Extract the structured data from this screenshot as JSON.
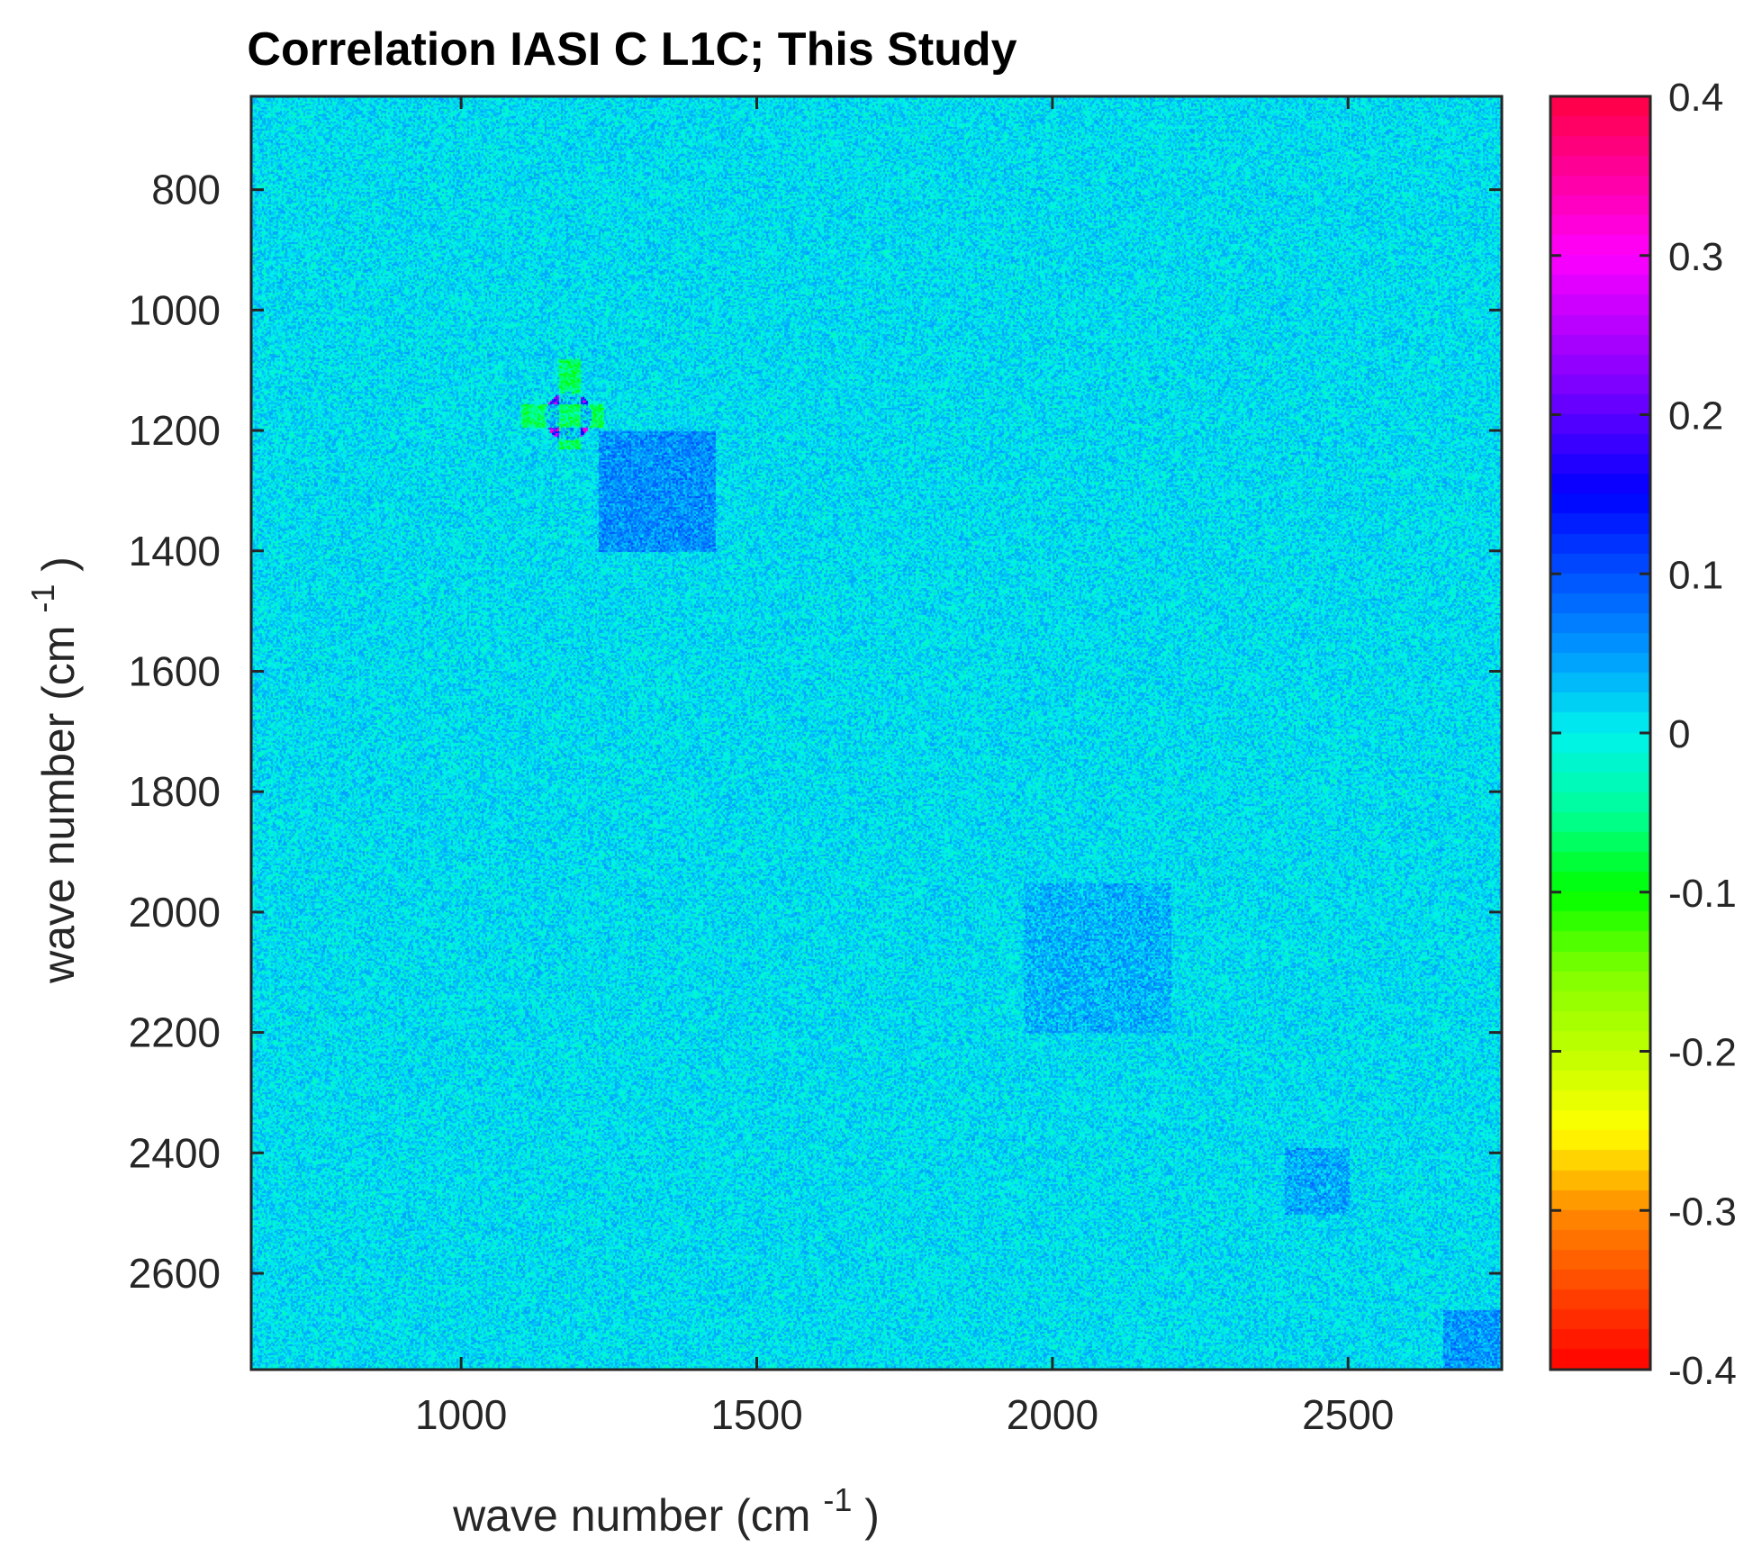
{
  "chart_data": {
    "type": "heatmap",
    "title": "Correlation IASI C L1C; This Study",
    "xlabel": "wave number (cm",
    "ylabel": "wave number (cm",
    "label_superscript": "-1",
    "label_close": ")",
    "xlim": [
      645,
      2760
    ],
    "ylim": [
      645,
      2760
    ],
    "y_reversed": true,
    "xticks": [
      1000,
      1500,
      2000,
      2500
    ],
    "xtick_labels": [
      "1000",
      "1500",
      "2000",
      "2500"
    ],
    "yticks": [
      800,
      1000,
      1200,
      1400,
      1600,
      1800,
      2000,
      2200,
      2400,
      2600
    ],
    "ytick_labels": [
      "800",
      "1000",
      "1200",
      "1400",
      "1600",
      "1800",
      "2000",
      "2200",
      "2400",
      "2600"
    ],
    "colorbar": {
      "range": [
        -0.4,
        0.4
      ],
      "ticks": [
        0.4,
        0.3,
        0.2,
        0.1,
        0,
        -0.1,
        -0.2,
        -0.3,
        -0.4
      ],
      "tick_labels": [
        "0.4",
        "0.3",
        "0.2",
        "0.1",
        "0",
        "-0.1",
        "-0.2",
        "-0.3",
        "-0.4"
      ],
      "colormap": [
        {
          "value": -0.4,
          "color": "#ff0000"
        },
        {
          "value": -0.3,
          "color": "#ff8c00"
        },
        {
          "value": -0.25,
          "color": "#ffff00"
        },
        {
          "value": -0.15,
          "color": "#80ff00"
        },
        {
          "value": -0.1,
          "color": "#00ff00"
        },
        {
          "value": -0.05,
          "color": "#00ff99"
        },
        {
          "value": 0.0,
          "color": "#00f2ee"
        },
        {
          "value": 0.05,
          "color": "#0099ff"
        },
        {
          "value": 0.1,
          "color": "#0050ff"
        },
        {
          "value": 0.15,
          "color": "#0000ff"
        },
        {
          "value": 0.22,
          "color": "#8000ff"
        },
        {
          "value": 0.3,
          "color": "#ff00ff"
        },
        {
          "value": 0.4,
          "color": "#ff0040"
        }
      ]
    },
    "background_value": 0.01,
    "features": [
      {
        "name": "strong-correlation-spot",
        "center": [
          1180,
          1175
        ],
        "width": 40,
        "value": 0.22
      },
      {
        "name": "negative-band-horizontal",
        "x_range": [
          1100,
          1240
        ],
        "y_range": [
          1155,
          1195
        ],
        "value": -0.12
      },
      {
        "name": "negative-band-vertical",
        "x_range": [
          1165,
          1200
        ],
        "y_range": [
          1080,
          1230
        ],
        "value": -0.12
      },
      {
        "name": "positive-block",
        "x_range": [
          1230,
          1430
        ],
        "y_range": [
          1200,
          1400
        ],
        "value": 0.09
      },
      {
        "name": "diagonal-band-2000",
        "x_range": [
          1950,
          2200
        ],
        "y_range": [
          1950,
          2200
        ],
        "value": 0.05
      },
      {
        "name": "block-2450",
        "x_range": [
          2390,
          2500
        ],
        "y_range": [
          2390,
          2500
        ],
        "value": 0.06
      },
      {
        "name": "corner-2700",
        "x_range": [
          2660,
          2760
        ],
        "y_range": [
          2660,
          2760
        ],
        "value": 0.08
      }
    ]
  }
}
